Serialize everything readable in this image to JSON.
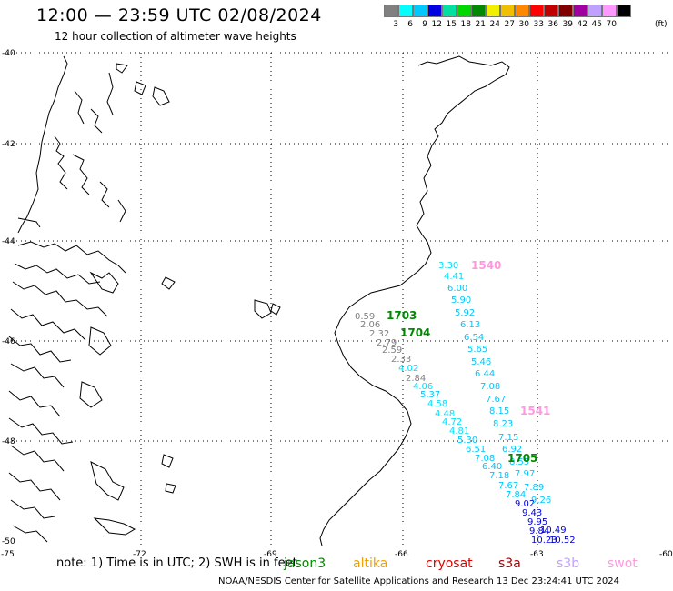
{
  "header": {
    "title": "12:00 — 23:59 UTC 02/08/2024",
    "subtitle": "12 hour collection of altimeter wave heights"
  },
  "legend": {
    "colors": [
      "#808080",
      "#00ffff",
      "#00c8ff",
      "#0000e0",
      "#00e0a0",
      "#00d800",
      "#008800",
      "#f0f000",
      "#f0c000",
      "#ff8800",
      "#ff0000",
      "#c00000",
      "#800000",
      "#a000a0",
      "#c0a0ff",
      "#ff99ff",
      "#000000"
    ],
    "labels": [
      "3",
      "6",
      "9",
      "12",
      "15",
      "18",
      "21",
      "24",
      "27",
      "30",
      "33",
      "36",
      "39",
      "42",
      "45",
      "70"
    ],
    "unit": "(ft)"
  },
  "axes": {
    "lat_labels": [
      "-40",
      "-42",
      "-44",
      "-46",
      "-48",
      "-50"
    ],
    "lon_labels": [
      "-75",
      "-72",
      "-69",
      "-66",
      "-63",
      "-60"
    ]
  },
  "note": "note:  1) Time is in UTC; 2) SWH is in feet",
  "satellites": [
    {
      "name": "jason3",
      "color": "#008800"
    },
    {
      "name": "altika",
      "color": "#f0a000"
    },
    {
      "name": "cryosat",
      "color": "#dd0000"
    },
    {
      "name": "s3a",
      "color": "#aa0000"
    },
    {
      "name": "s3b",
      "color": "#c0a0ff"
    },
    {
      "name": "swot",
      "color": "#ff99dd"
    }
  ],
  "footer": "NOAA/NESDIS Center for Satellite Applications and Research    13 Dec 23:24:41 UTC 2024",
  "time_labels": [
    {
      "text": "1540",
      "color": "#ff99dd"
    },
    {
      "text": "1703",
      "color": "#008800"
    },
    {
      "text": "1704",
      "color": "#008800"
    },
    {
      "text": "1541",
      "color": "#ff99dd"
    },
    {
      "text": "1705",
      "color": "#008800"
    }
  ],
  "swh_values": [
    {
      "v": "3.30",
      "c": "#00e0ff"
    },
    {
      "v": "4.41",
      "c": "#00e0ff"
    },
    {
      "v": "6.00",
      "c": "#00c8ff"
    },
    {
      "v": "5.90",
      "c": "#00c8ff"
    },
    {
      "v": "5.92",
      "c": "#00c8ff"
    },
    {
      "v": "6.13",
      "c": "#00c8ff"
    },
    {
      "v": "6.54",
      "c": "#00c8ff"
    },
    {
      "v": "5.65",
      "c": "#00c8ff"
    },
    {
      "v": "5.46",
      "c": "#00c8ff"
    },
    {
      "v": "6.44",
      "c": "#00c8ff"
    },
    {
      "v": "7.08",
      "c": "#00c8ff"
    },
    {
      "v": "7.67",
      "c": "#00c8ff"
    },
    {
      "v": "8.15",
      "c": "#00c8ff"
    },
    {
      "v": "8.23",
      "c": "#00c8ff"
    },
    {
      "v": "7.15",
      "c": "#00c8ff"
    },
    {
      "v": "6.92",
      "c": "#00c8ff"
    },
    {
      "v": "0.59",
      "c": "#808080"
    },
    {
      "v": "2.06",
      "c": "#808080"
    },
    {
      "v": "2.32",
      "c": "#808080"
    },
    {
      "v": "2.79",
      "c": "#808080"
    },
    {
      "v": "2.59",
      "c": "#808080"
    },
    {
      "v": "2.33",
      "c": "#808080"
    },
    {
      "v": "4.02",
      "c": "#00e0ff"
    },
    {
      "v": "2.84",
      "c": "#808080"
    },
    {
      "v": "4.06",
      "c": "#00e0ff"
    },
    {
      "v": "5.37",
      "c": "#00c8ff"
    },
    {
      "v": "4.58",
      "c": "#00e0ff"
    },
    {
      "v": "4.48",
      "c": "#00e0ff"
    },
    {
      "v": "4.72",
      "c": "#00e0ff"
    },
    {
      "v": "4.81",
      "c": "#00e0ff"
    },
    {
      "v": "5.30",
      "c": "#00c8ff"
    },
    {
      "v": "6.51",
      "c": "#00c8ff"
    },
    {
      "v": "7.08",
      "c": "#00c8ff"
    },
    {
      "v": "6.40",
      "c": "#00c8ff"
    },
    {
      "v": "7.18",
      "c": "#00c8ff"
    },
    {
      "v": "7.97",
      "c": "#00c8ff"
    },
    {
      "v": "7.67",
      "c": "#00c8ff"
    },
    {
      "v": "7.89",
      "c": "#00c8ff"
    },
    {
      "v": "7.84",
      "c": "#00c8ff"
    },
    {
      "v": "9.02",
      "c": "#0000e0"
    },
    {
      "v": "9.26",
      "c": "#00c8ff"
    },
    {
      "v": "9.43",
      "c": "#0000e0"
    },
    {
      "v": "9.95",
      "c": "#0000e0"
    },
    {
      "v": "9.84",
      "c": "#0000e0"
    },
    {
      "v": "10.49",
      "c": "#0000e0"
    },
    {
      "v": "10.23",
      "c": "#0000e0"
    },
    {
      "v": "10.52",
      "c": "#0000e0"
    },
    {
      "v": "8.55",
      "c": "#00c8ff"
    }
  ]
}
